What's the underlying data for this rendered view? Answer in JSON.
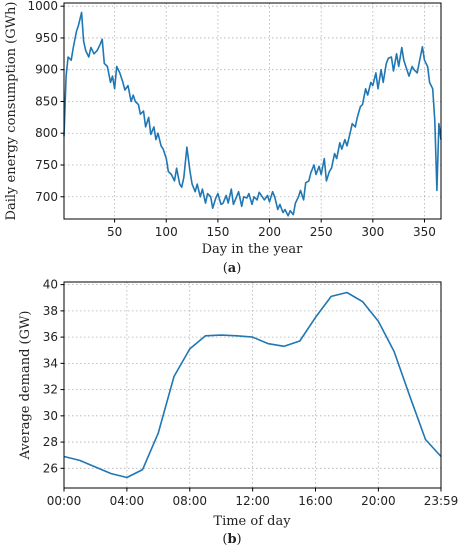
{
  "panel_a": {
    "label": "a"
  },
  "panel_b": {
    "label": "b"
  },
  "chart_data": [
    {
      "type": "line",
      "panel": "a",
      "title": "",
      "xlabel": "Day in the year",
      "ylabel": "Daily energy consumption (GWh)",
      "xlim": [
        1,
        366
      ],
      "ylim": [
        665,
        1005
      ],
      "xticks": [
        50,
        100,
        150,
        200,
        250,
        300,
        350
      ],
      "yticks": [
        700,
        750,
        800,
        850,
        900,
        950,
        1000
      ],
      "color": "#1f77b4",
      "grid": true,
      "series": [
        {
          "x": [
            1,
            3,
            5,
            8,
            10,
            13,
            15,
            18,
            20,
            22,
            25,
            27,
            30,
            33,
            36,
            38,
            40,
            43,
            46,
            48,
            50,
            52,
            55,
            58,
            60,
            63,
            66,
            68,
            70,
            73,
            75,
            78,
            80,
            83,
            85,
            88,
            90,
            92,
            95,
            97,
            100,
            102,
            105,
            108,
            110,
            113,
            115,
            117,
            120,
            123,
            125,
            128,
            130,
            133,
            135,
            138,
            140,
            143,
            145,
            148,
            150,
            153,
            155,
            158,
            160,
            163,
            165,
            168,
            170,
            173,
            175,
            178,
            180,
            183,
            185,
            188,
            190,
            193,
            195,
            198,
            200,
            203,
            205,
            208,
            210,
            213,
            215,
            218,
            220,
            223,
            225,
            228,
            230,
            233,
            235,
            238,
            240,
            243,
            245,
            248,
            250,
            253,
            255,
            258,
            260,
            263,
            265,
            268,
            270,
            273,
            275,
            278,
            280,
            283,
            285,
            288,
            290,
            293,
            295,
            298,
            300,
            303,
            305,
            308,
            310,
            313,
            315,
            318,
            320,
            323,
            325,
            328,
            330,
            333,
            335,
            338,
            340,
            343,
            345,
            348,
            350,
            353,
            355,
            358,
            360,
            362,
            364,
            366
          ],
          "values": [
            795,
            890,
            920,
            915,
            935,
            960,
            970,
            990,
            945,
            930,
            920,
            935,
            925,
            930,
            940,
            948,
            910,
            905,
            880,
            890,
            870,
            905,
            895,
            880,
            868,
            875,
            850,
            860,
            850,
            845,
            830,
            835,
            810,
            825,
            798,
            810,
            790,
            800,
            780,
            775,
            760,
            740,
            735,
            725,
            745,
            720,
            715,
            730,
            778,
            740,
            720,
            708,
            720,
            700,
            712,
            690,
            705,
            700,
            682,
            698,
            705,
            688,
            690,
            702,
            690,
            712,
            688,
            700,
            708,
            685,
            700,
            698,
            705,
            688,
            700,
            695,
            707,
            700,
            695,
            702,
            692,
            708,
            700,
            680,
            688,
            675,
            680,
            670,
            678,
            672,
            690,
            700,
            710,
            695,
            722,
            725,
            738,
            750,
            735,
            748,
            735,
            760,
            725,
            740,
            745,
            768,
            760,
            785,
            775,
            790,
            780,
            800,
            815,
            810,
            825,
            842,
            845,
            870,
            860,
            880,
            875,
            895,
            870,
            900,
            880,
            910,
            918,
            920,
            898,
            925,
            905,
            935,
            915,
            900,
            890,
            905,
            900,
            895,
            912,
            936,
            915,
            905,
            880,
            870,
            820,
            710,
            815,
            790
          ]
        }
      ]
    },
    {
      "type": "line",
      "panel": "b",
      "title": "",
      "xlabel": "Time of day",
      "ylabel": "Average demand (GW)",
      "xlim": [
        0,
        23.9833
      ],
      "ylim": [
        24.5,
        40.2
      ],
      "xticks": [
        "00:00",
        "04:00",
        "08:00",
        "12:00",
        "16:00",
        "20:00",
        "23:59"
      ],
      "yticks": [
        26,
        28,
        30,
        32,
        34,
        36,
        38,
        40
      ],
      "color": "#1f77b4",
      "grid": true,
      "series": [
        {
          "x": [
            0,
            1,
            2,
            3,
            4,
            5,
            6,
            7,
            8,
            9,
            10,
            11,
            12,
            13,
            14,
            15,
            16,
            17,
            18,
            19,
            20,
            21,
            22,
            23,
            23.9833
          ],
          "values": [
            26.9,
            26.6,
            26.1,
            25.6,
            25.3,
            25.9,
            28.7,
            33.0,
            35.1,
            36.1,
            36.15,
            36.1,
            36.0,
            35.5,
            35.3,
            35.7,
            37.5,
            39.1,
            39.4,
            38.7,
            37.2,
            34.9,
            31.5,
            28.2,
            26.9
          ]
        }
      ]
    }
  ]
}
